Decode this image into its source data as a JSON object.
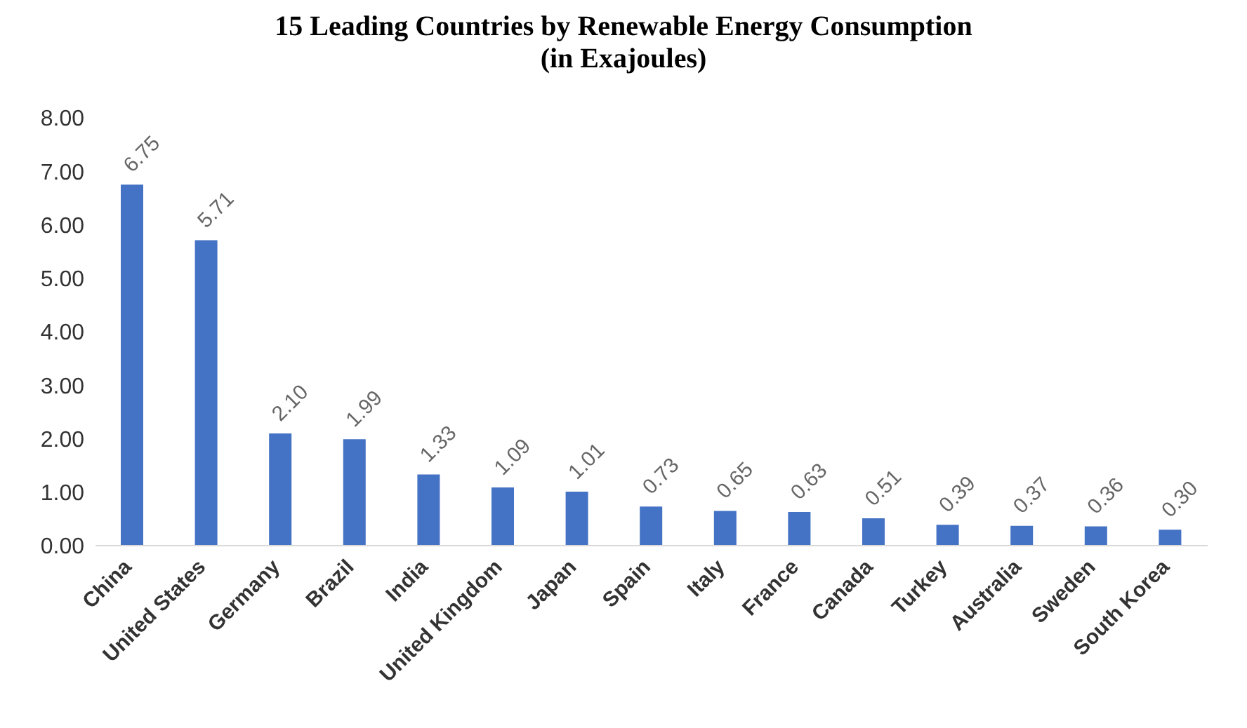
{
  "chart_data": {
    "type": "bar",
    "title": "15 Leading Countries by Renewable Energy Consumption",
    "subtitle": "(in Exajoules)",
    "categories": [
      "China",
      "United States",
      "Germany",
      "Brazil",
      "India",
      "United Kingdom",
      "Japan",
      "Spain",
      "Italy",
      "France",
      "Canada",
      "Turkey",
      "Australia",
      "Sweden",
      "South Korea"
    ],
    "values": [
      6.75,
      5.71,
      2.1,
      1.99,
      1.33,
      1.09,
      1.01,
      0.73,
      0.65,
      0.63,
      0.51,
      0.39,
      0.37,
      0.36,
      0.3
    ],
    "value_labels": [
      "6.75",
      "5.71",
      "2.10",
      "1.99",
      "1.33",
      "1.09",
      "1.01",
      "0.73",
      "0.65",
      "0.63",
      "0.51",
      "0.39",
      "0.37",
      "0.36",
      "0.30"
    ],
    "color": "#4472c4",
    "ylim": [
      0,
      8
    ],
    "yticks": [
      {
        "value": 0,
        "label": "0.00"
      },
      {
        "value": 1,
        "label": "1.00"
      },
      {
        "value": 2,
        "label": "2.00"
      },
      {
        "value": 3,
        "label": "3.00"
      },
      {
        "value": 4,
        "label": "4.00"
      },
      {
        "value": 5,
        "label": "5.00"
      },
      {
        "value": 6,
        "label": "6.00"
      },
      {
        "value": 7,
        "label": "7.00"
      },
      {
        "value": 8,
        "label": "8.00"
      }
    ],
    "grid": false,
    "legend": false
  }
}
